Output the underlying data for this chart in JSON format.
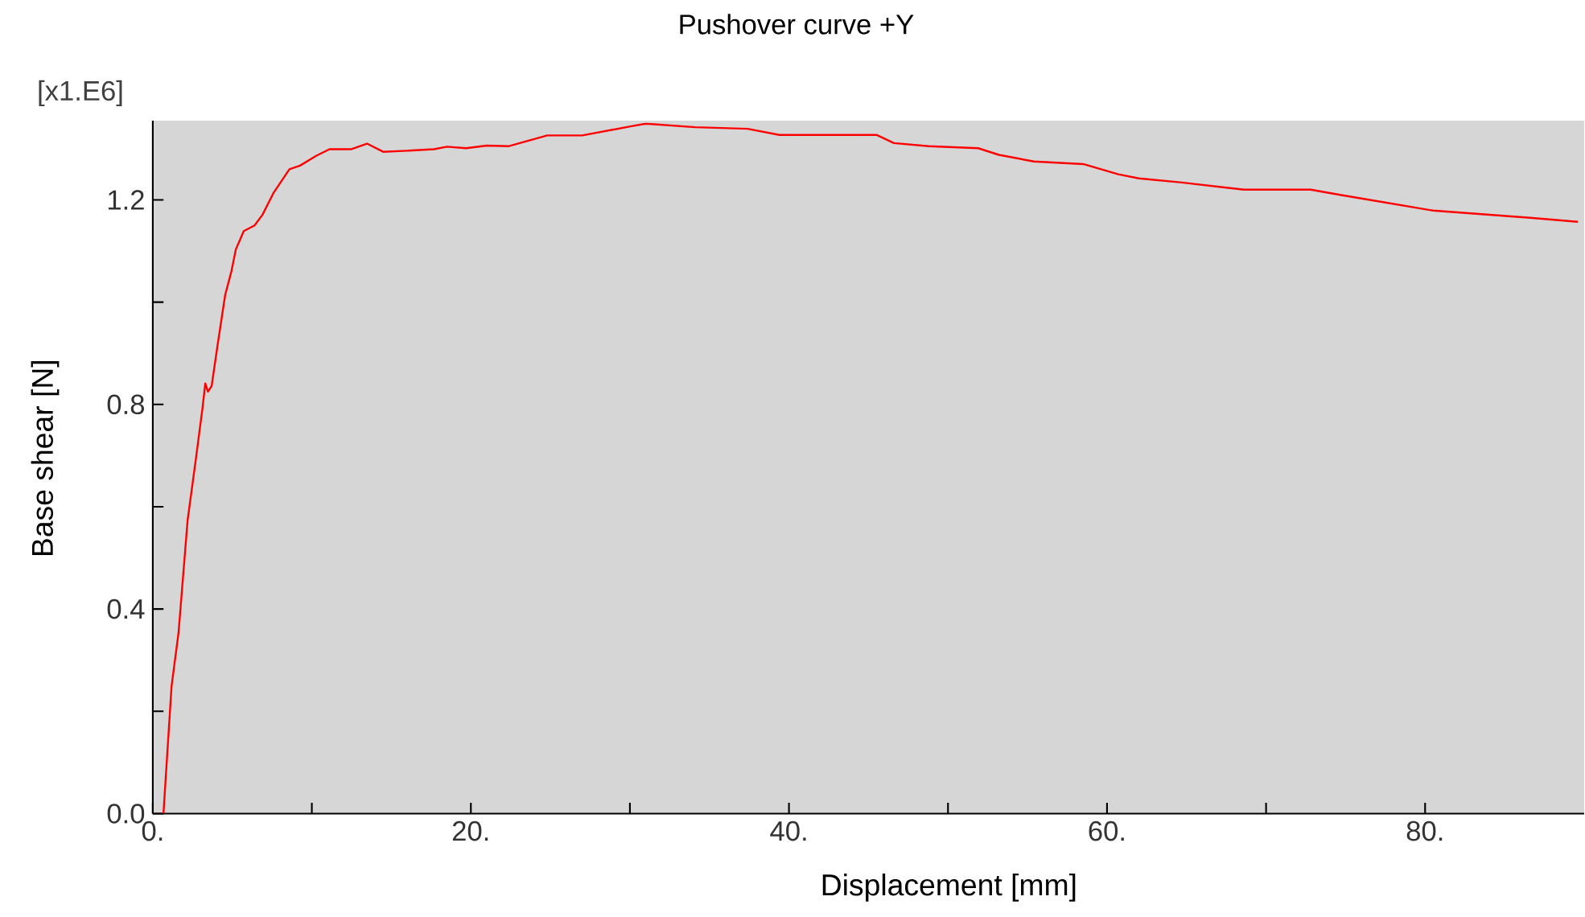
{
  "chart_data": {
    "type": "line",
    "title": "Pushover curve +Y",
    "xlabel": "Displacement [mm]",
    "ylabel": "Base shear [N]",
    "annotations": [
      "[x1.E6]"
    ],
    "xlim": [
      0,
      90
    ],
    "ylim": [
      0,
      1.355
    ],
    "xticks": [
      {
        "value": 0,
        "label": "0."
      },
      {
        "value": 10,
        "label": null
      },
      {
        "value": 20,
        "label": "20."
      },
      {
        "value": 30,
        "label": null
      },
      {
        "value": 40,
        "label": "40."
      },
      {
        "value": 50,
        "label": null
      },
      {
        "value": 60,
        "label": "60."
      },
      {
        "value": 70,
        "label": null
      },
      {
        "value": 80,
        "label": "80."
      }
    ],
    "yticks": [
      {
        "value": 0,
        "label": "0.0"
      },
      {
        "value": 0.2,
        "label": null
      },
      {
        "value": 0.4,
        "label": "0.4"
      },
      {
        "value": 0.6,
        "label": null
      },
      {
        "value": 0.8,
        "label": "0.8"
      },
      {
        "value": 1.0,
        "label": null
      },
      {
        "value": 1.2,
        "label": "1.2"
      }
    ],
    "grid": false,
    "marker": "none",
    "line_style": "solid",
    "series": [
      {
        "color": "#ff0000",
        "x": [
          0.67,
          1.18,
          1.62,
          2.19,
          2.69,
          3.13,
          3.3,
          3.47,
          3.7,
          4.04,
          4.55,
          4.95,
          5.22,
          5.72,
          6.4,
          6.9,
          7.58,
          8.59,
          9.26,
          10.27,
          11.11,
          12.46,
          13.47,
          14.48,
          16.0,
          17.68,
          18.5,
          19.7,
          21.0,
          22.4,
          24.8,
          27.0,
          30.1,
          31.0,
          34.1,
          37.4,
          39.4,
          45.5,
          46.6,
          48.8,
          51.9,
          53.2,
          55.4,
          58.5,
          60.7,
          62.0,
          64.7,
          68.6,
          72.8,
          74.8,
          80.5,
          86.6,
          89.6
        ],
        "values": [
          0,
          0.249,
          0.354,
          0.574,
          0.689,
          0.794,
          0.841,
          0.825,
          0.836,
          0.909,
          1.014,
          1.061,
          1.103,
          1.139,
          1.15,
          1.171,
          1.213,
          1.26,
          1.267,
          1.286,
          1.299,
          1.299,
          1.31,
          1.294,
          1.296,
          1.299,
          1.304,
          1.301,
          1.306,
          1.305,
          1.326,
          1.326,
          1.344,
          1.349,
          1.342,
          1.339,
          1.327,
          1.327,
          1.311,
          1.305,
          1.301,
          1.288,
          1.275,
          1.27,
          1.25,
          1.242,
          1.234,
          1.22,
          1.22,
          1.209,
          1.179,
          1.165,
          1.157
        ]
      }
    ]
  }
}
